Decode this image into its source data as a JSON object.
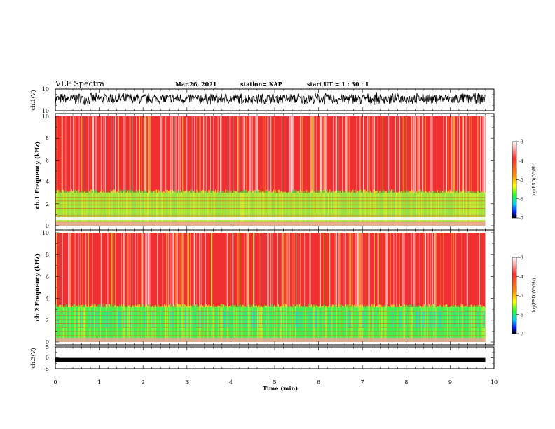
{
  "header": {
    "title": "VLF Spectra",
    "date": "Mar.26, 2021",
    "station": "station= KAP",
    "start": "start  UT =   1 : 30 : 1"
  },
  "colors": {
    "background_high": "#f03030",
    "speckle": "#ffffff",
    "band_green": "#30e040",
    "band_yellow": "#f0f020",
    "band_cyan": "#20d0f0",
    "trace": "#000000"
  },
  "chart_data": [
    {
      "type": "line",
      "panel": "ch1_waveform",
      "ylabel": "ch.1(V)",
      "ylim": [
        -10,
        10
      ],
      "yticks": [
        "10",
        "-10"
      ],
      "xlim": [
        0,
        10
      ],
      "x_extent_min": 9.8,
      "approx_mean": 1,
      "approx_amplitude": 5
    },
    {
      "type": "heatmap",
      "panel": "ch1_spectrogram",
      "ylabel": "ch.1 Frequency  (kHz)",
      "ylim": [
        0,
        10
      ],
      "yticks": [
        "0",
        "2",
        "4",
        "6",
        "8",
        "10"
      ],
      "xlim": [
        0,
        10
      ],
      "x_extent_min": 9.8,
      "green_band_top_khz": 3.0,
      "gap_band_khz": [
        0.5,
        0.8
      ],
      "colorbar": {
        "label": "log(PSD)(V²/Hz)",
        "range": [
          -7,
          -3
        ],
        "ticks": [
          "-3",
          "-4",
          "-5",
          "-6",
          "-7"
        ]
      }
    },
    {
      "type": "heatmap",
      "panel": "ch2_spectrogram",
      "ylabel": "ch.2 Frequency  (kHz)",
      "ylim": [
        0,
        10
      ],
      "yticks": [
        "0",
        "2",
        "4",
        "6",
        "8",
        "10"
      ],
      "xlim": [
        0,
        10
      ],
      "x_extent_min": 9.8,
      "green_band_top_khz": 3.2,
      "colorbar": {
        "label": "log(PSD)(V²/Hz)",
        "range": [
          -7,
          -3
        ],
        "ticks": [
          "-3",
          "-4",
          "-5",
          "-6",
          "-7"
        ]
      }
    },
    {
      "type": "line",
      "panel": "ch3_waveform",
      "ylabel": "ch.3(V)",
      "ylim": [
        -5,
        5
      ],
      "yticks": [
        "5",
        "0",
        "-5"
      ],
      "xlim": [
        0,
        10
      ],
      "x_extent_min": 9.8,
      "approx_level": -1
    }
  ],
  "xaxis": {
    "label": "Time  (min)",
    "ticks": [
      "0",
      "1",
      "2",
      "3",
      "4",
      "5",
      "6",
      "7",
      "8",
      "9",
      "10"
    ]
  }
}
